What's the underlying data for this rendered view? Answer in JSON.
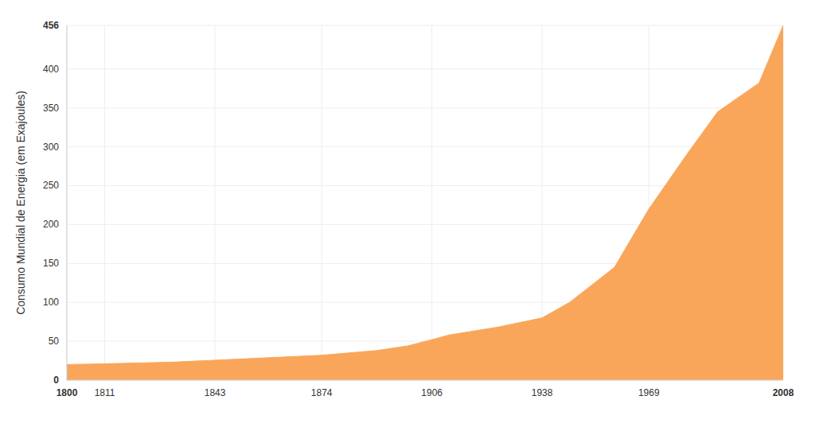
{
  "chart_data": {
    "type": "area",
    "y_label": "Consumo Mundial de Energia (em Exajoules)",
    "x": [
      1800,
      1811,
      1830,
      1850,
      1874,
      1890,
      1899,
      1906,
      1911,
      1925,
      1938,
      1946,
      1959,
      1969,
      1980,
      1989,
      2001,
      2008
    ],
    "values": [
      20,
      21,
      23,
      27,
      32,
      38,
      44,
      52,
      58,
      68,
      80,
      100,
      145,
      220,
      290,
      345,
      382,
      456
    ],
    "color": "#f9a65a",
    "xlim": [
      1800,
      2008
    ],
    "ylim": [
      0,
      456
    ],
    "xticks": [
      1800,
      1811,
      1843,
      1874,
      1906,
      1938,
      1969,
      2008
    ],
    "yticks": [
      0,
      50,
      100,
      150,
      200,
      250,
      300,
      350,
      400,
      456
    ],
    "grid": true
  }
}
